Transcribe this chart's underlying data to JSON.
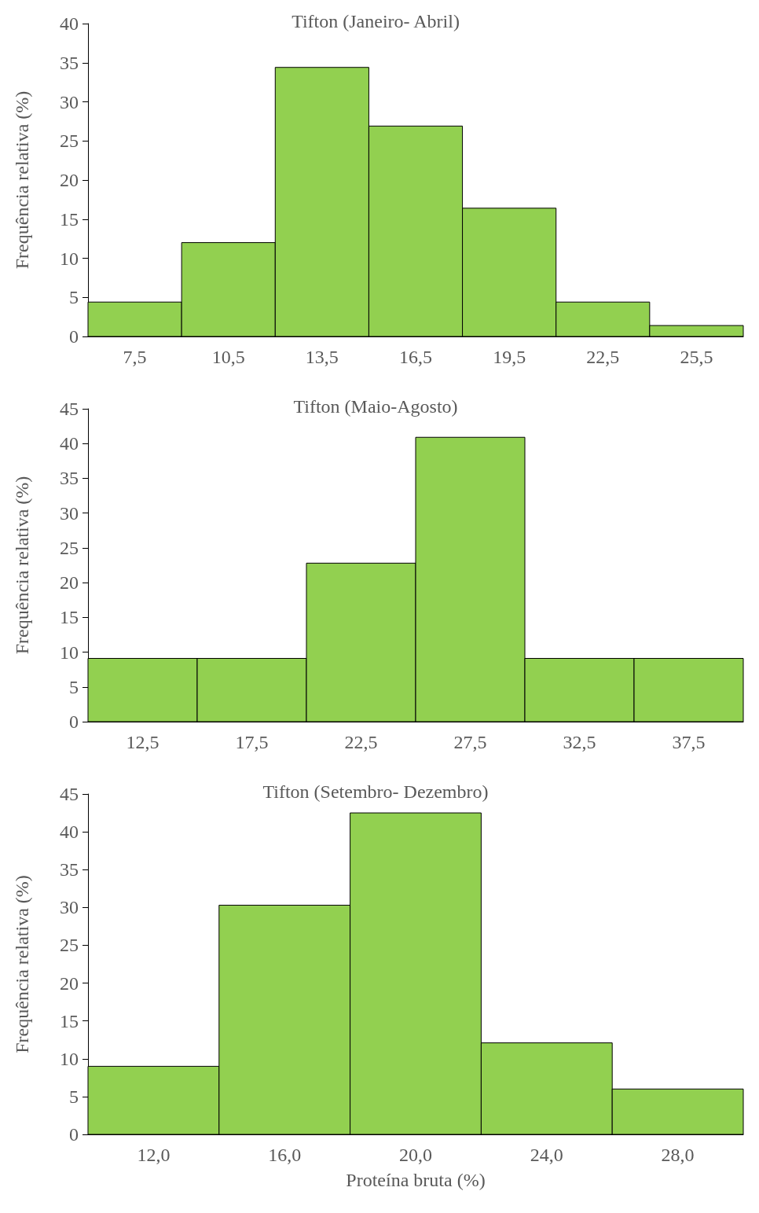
{
  "chart_data": [
    {
      "type": "histogram",
      "title": "Tifton (Janeiro- Abril)",
      "ylabel": "Frequência relativa (%)",
      "bins": [
        6,
        9,
        12,
        15,
        18,
        21,
        24,
        27
      ],
      "values": [
        4.4,
        12,
        34.4,
        26.9,
        16.4,
        4.4,
        1.4
      ],
      "color": "#92d050",
      "xlim": [
        6,
        27
      ],
      "xticks": [
        {
          "value": 7.5,
          "label": "7,5"
        },
        {
          "value": 10.5,
          "label": "10,5"
        },
        {
          "value": 13.5,
          "label": "13,5"
        },
        {
          "value": 16.5,
          "label": "16,5"
        },
        {
          "value": 19.5,
          "label": "19,5"
        },
        {
          "value": 22.5,
          "label": "22,5"
        },
        {
          "value": 25.5,
          "label": "25,5"
        }
      ],
      "ylim": [
        0,
        40
      ],
      "yticks": [
        0,
        5,
        10,
        15,
        20,
        25,
        30,
        35,
        40
      ],
      "grid": false
    },
    {
      "type": "histogram",
      "title": "Tifton (Maio-Agosto)",
      "ylabel": "Frequência relativa (%)",
      "bins": [
        10,
        15,
        20,
        25,
        30,
        35,
        40
      ],
      "values": [
        9.1,
        9.1,
        22.8,
        40.9,
        9.1,
        9.1
      ],
      "color": "#92d050",
      "xlim": [
        10,
        40
      ],
      "xticks": [
        {
          "value": 12.5,
          "label": "12,5"
        },
        {
          "value": 17.5,
          "label": "17,5"
        },
        {
          "value": 22.5,
          "label": "22,5"
        },
        {
          "value": 27.5,
          "label": "27,5"
        },
        {
          "value": 32.5,
          "label": "32,5"
        },
        {
          "value": 37.5,
          "label": "37,5"
        }
      ],
      "ylim": [
        0,
        45
      ],
      "yticks": [
        0,
        5,
        10,
        15,
        20,
        25,
        30,
        35,
        40,
        45
      ],
      "grid": false
    },
    {
      "type": "histogram",
      "title": "Tifton (Setembro- Dezembro)",
      "ylabel": "Frequência relativa (%)",
      "xlabel": "Proteína bruta (%)",
      "bins": [
        10,
        14,
        18,
        22,
        26,
        30
      ],
      "values": [
        9,
        30.3,
        42.5,
        12.1,
        6
      ],
      "color": "#92d050",
      "xlim": [
        10,
        30
      ],
      "xticks": [
        {
          "value": 12,
          "label": "12,0"
        },
        {
          "value": 16,
          "label": "16,0"
        },
        {
          "value": 20,
          "label": "20,0"
        },
        {
          "value": 24,
          "label": "24,0"
        },
        {
          "value": 28,
          "label": "28,0"
        }
      ],
      "ylim": [
        0,
        45
      ],
      "yticks": [
        0,
        5,
        10,
        15,
        20,
        25,
        30,
        35,
        40,
        45
      ],
      "grid": false
    }
  ]
}
